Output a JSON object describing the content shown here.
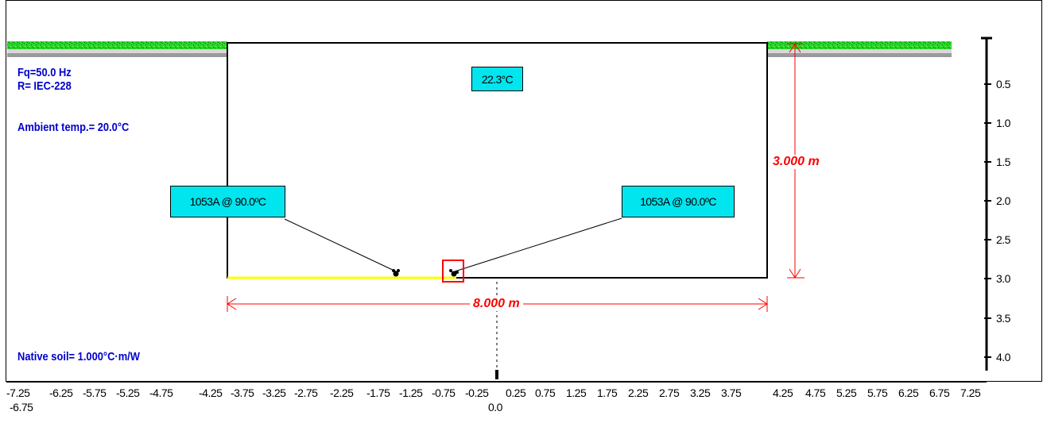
{
  "info": {
    "frequency": "Fq=50.0 Hz",
    "r_standard": "R= IEC-228",
    "ambient": "Ambient temp.= 20.0°C",
    "native_soil": "Native soil= 1.000°C·m/W"
  },
  "callouts": {
    "temperature": "22.3°C",
    "cable_left": "1053A @ 90.0ºC",
    "cable_right": "1053A @ 90.0ºC"
  },
  "dimensions": {
    "depth": "3.000 m",
    "width": "8.000 m"
  },
  "y_axis": {
    "ticks": [
      "0.5",
      "1.0",
      "1.5",
      "2.0",
      "2.5",
      "3.0",
      "3.5",
      "4.0"
    ]
  },
  "x_axis": {
    "ticks": [
      "-7.25",
      "-6.25",
      "-5.75",
      "-5.25",
      "-4.75",
      "-4.25",
      "-3.75",
      "-3.25",
      "-2.75",
      "-2.25",
      "-1.75",
      "-1.25",
      "-0.75",
      "-0.25",
      "0.25",
      "0.75",
      "1.25",
      "1.75",
      "2.25",
      "2.75",
      "3.25",
      "3.75",
      "4.25",
      "4.75",
      "5.25",
      "5.75",
      "6.25",
      "6.75",
      "7.25"
    ],
    "sub_left": "-6.75",
    "sub_center": "0.0"
  },
  "colors": {
    "grass": "#22cc22",
    "callout_bg": "#00e5ee",
    "info_text": "#0000cc",
    "dimension": "#ff0000",
    "selection": "#ff0000",
    "trench_bottom": "#ffff00"
  }
}
